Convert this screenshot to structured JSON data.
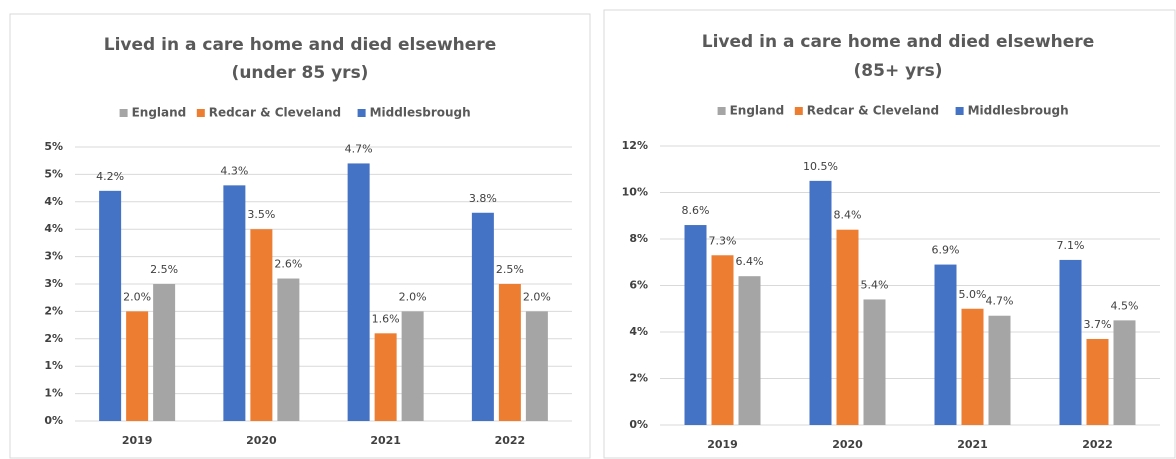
{
  "chart_data": [
    {
      "type": "bar",
      "title": "Lived in a care home and died elsewhere",
      "subtitle": "(under 85 yrs)",
      "categories": [
        "2019",
        "2020",
        "2021",
        "2022"
      ],
      "series": [
        {
          "name": "Middlesbrough",
          "color": "#4472c4",
          "values": [
            4.2,
            4.3,
            4.7,
            3.8
          ],
          "value_labels": [
            "4.2%",
            "4.3%",
            "4.7%",
            "3.8%"
          ]
        },
        {
          "name": "Redcar & Cleveland",
          "color": "#ed7d31",
          "values": [
            2.0,
            3.5,
            1.6,
            2.5
          ],
          "value_labels": [
            "2.0%",
            "3.5%",
            "1.6%",
            "2.5%"
          ]
        },
        {
          "name": "England",
          "color": "#a5a5a5",
          "values": [
            2.5,
            2.6,
            2.0,
            2.0
          ],
          "value_labels": [
            "2.5%",
            "2.6%",
            "2.0%",
            "2.0%"
          ]
        }
      ],
      "ylim": [
        0,
        5
      ],
      "yticks": [
        {
          "value": 0,
          "label": "0%"
        },
        {
          "value": 0.5,
          "label": "1%"
        },
        {
          "value": 1,
          "label": "1%"
        },
        {
          "value": 1.5,
          "label": "2%"
        },
        {
          "value": 2,
          "label": "2%"
        },
        {
          "value": 2.5,
          "label": "3%"
        },
        {
          "value": 3,
          "label": "3%"
        },
        {
          "value": 3.5,
          "label": "4%"
        },
        {
          "value": 4,
          "label": "4%"
        },
        {
          "value": 4.5,
          "label": "5%"
        },
        {
          "value": 5,
          "label": "5%"
        }
      ],
      "grid": true,
      "legend": "top"
    },
    {
      "type": "bar",
      "title": "Lived in a care home and died elsewhere",
      "subtitle": "(85+ yrs)",
      "categories": [
        "2019",
        "2020",
        "2021",
        "2022"
      ],
      "series": [
        {
          "name": "Middlesbrough",
          "color": "#4472c4",
          "values": [
            8.6,
            10.5,
            6.9,
            7.1
          ],
          "value_labels": [
            "8.6%",
            "10.5%",
            "6.9%",
            "7.1%"
          ]
        },
        {
          "name": "Redcar & Cleveland",
          "color": "#ed7d31",
          "values": [
            7.3,
            8.4,
            5.0,
            3.7
          ],
          "value_labels": [
            "7.3%",
            "8.4%",
            "5.0%",
            "3.7%"
          ]
        },
        {
          "name": "England",
          "color": "#a5a5a5",
          "values": [
            6.4,
            5.4,
            4.7,
            4.5
          ],
          "value_labels": [
            "6.4%",
            "5.4%",
            "4.7%",
            "4.5%"
          ]
        }
      ],
      "ylim": [
        0,
        12
      ],
      "yticks": [
        {
          "value": 0,
          "label": "0%"
        },
        {
          "value": 2,
          "label": "2%"
        },
        {
          "value": 4,
          "label": "4%"
        },
        {
          "value": 6,
          "label": "6%"
        },
        {
          "value": 8,
          "label": "8%"
        },
        {
          "value": 10,
          "label": "10%"
        },
        {
          "value": 12,
          "label": "12%"
        }
      ],
      "grid": true,
      "legend": "top"
    }
  ]
}
